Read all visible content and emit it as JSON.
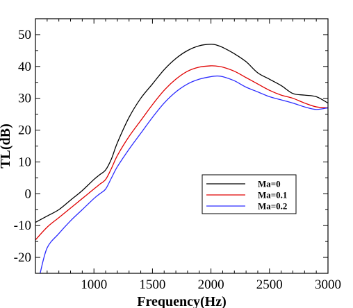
{
  "chart_data": {
    "type": "line",
    "title": "",
    "xlabel": "Frequency(Hz)",
    "ylabel": "TL(dB)",
    "xlim": [
      500,
      3000
    ],
    "ylim": [
      -25,
      55
    ],
    "xticks": [
      1000,
      1500,
      2000,
      2500,
      3000
    ],
    "yticks": [
      -20,
      -10,
      0,
      10,
      20,
      30,
      40,
      50
    ],
    "xtick_labels": [
      "1000",
      "1500",
      "2000",
      "2500",
      "3000"
    ],
    "ytick_labels": [
      "-20",
      "-10",
      "0",
      "10",
      "20",
      "30",
      "40",
      "50"
    ],
    "grid": false,
    "legend_position": "center-right",
    "series": [
      {
        "name": "Ma=0",
        "color": "#000000",
        "x": [
          500,
          600,
          700,
          800,
          900,
          1000,
          1050,
          1100,
          1150,
          1200,
          1300,
          1400,
          1500,
          1600,
          1700,
          1800,
          1900,
          2000,
          2050,
          2100,
          2200,
          2300,
          2400,
          2500,
          2600,
          2700,
          2800,
          2900,
          3000
        ],
        "y": [
          -9,
          -7,
          -5,
          -2,
          1,
          4.5,
          6,
          7.5,
          11,
          16,
          24,
          30,
          34.5,
          39,
          42.5,
          45,
          46.5,
          47,
          46.7,
          46,
          44,
          41.5,
          38,
          36,
          34,
          31.5,
          31,
          30.5,
          28.5
        ]
      },
      {
        "name": "Ma=0.1",
        "color": "#e00000",
        "x": [
          500,
          600,
          700,
          800,
          900,
          1000,
          1050,
          1100,
          1150,
          1200,
          1300,
          1400,
          1500,
          1600,
          1700,
          1800,
          1900,
          2000,
          2050,
          2100,
          2200,
          2300,
          2400,
          2500,
          2600,
          2700,
          2800,
          2900,
          3000
        ],
        "y": [
          -14.5,
          -10.5,
          -7.5,
          -4.5,
          -1.5,
          1.5,
          3,
          4.5,
          8,
          12,
          18,
          23,
          28,
          32.5,
          36,
          38.5,
          39.8,
          40.2,
          40.1,
          39.8,
          38.5,
          36.5,
          34.5,
          32.5,
          31,
          30,
          28.5,
          27.3,
          27
        ]
      },
      {
        "name": "Ma=0.2",
        "color": "#2a2aff",
        "x": [
          540,
          600,
          700,
          800,
          900,
          1000,
          1050,
          1100,
          1150,
          1200,
          1300,
          1400,
          1500,
          1600,
          1700,
          1800,
          1900,
          2000,
          2050,
          2100,
          2200,
          2300,
          2400,
          2500,
          2600,
          2700,
          2800,
          2900,
          3000
        ],
        "y": [
          -25,
          -17,
          -12.5,
          -8.5,
          -5,
          -1.5,
          0,
          1.5,
          5,
          8.5,
          14,
          19,
          24,
          28.5,
          32,
          34.5,
          36,
          36.8,
          37,
          36.8,
          35.5,
          33.5,
          32,
          30.5,
          29.5,
          28.5,
          27.3,
          26.5,
          27
        ]
      }
    ]
  }
}
